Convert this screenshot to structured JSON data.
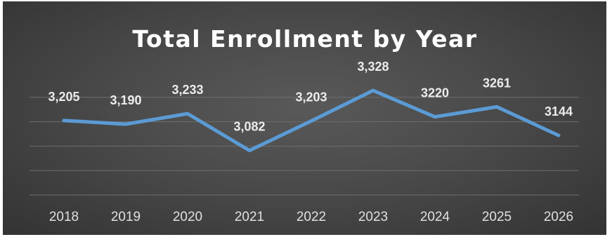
{
  "chart_data": {
    "type": "line",
    "title": "Total Enrollment by Year",
    "xlabel": "",
    "ylabel": "",
    "categories": [
      "2018",
      "2019",
      "2020",
      "2021",
      "2022",
      "2023",
      "2024",
      "2025",
      "2026"
    ],
    "values": [
      3205,
      3190,
      3233,
      3082,
      3203,
      3328,
      3220,
      3261,
      3144
    ],
    "data_labels": [
      "3,205",
      "3,190",
      "3,233",
      "3,082",
      "3,203",
      "3,328",
      "3220",
      "3261",
      "3144"
    ],
    "ylim": [
      2900,
      3400
    ],
    "grid": true,
    "legend": "none",
    "colors": {
      "background": "#4a4a4a",
      "line": "#5b9bd5",
      "text": "#ffffff"
    }
  }
}
